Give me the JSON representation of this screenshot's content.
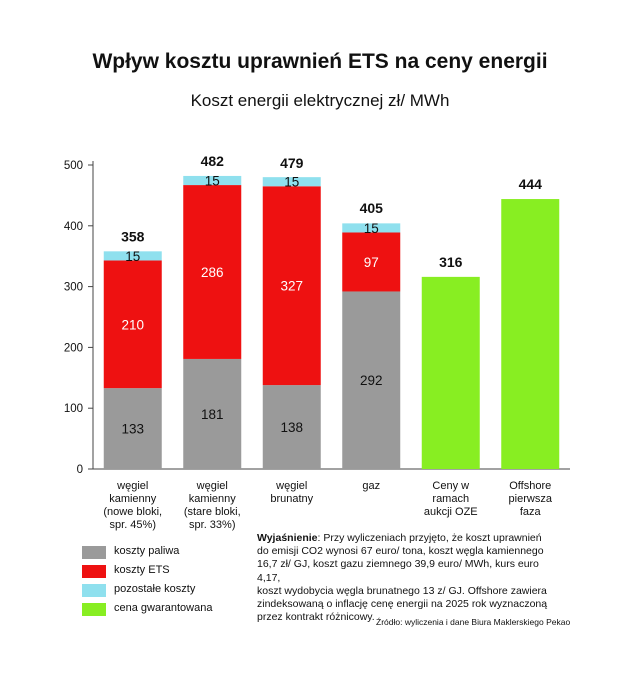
{
  "title": "Wpływ kosztu uprawnień ETS na ceny energii",
  "subtitle": "Koszt energii elektrycznej zł/ MWh",
  "colors": {
    "fuel": "#9a9a9a",
    "ets": "#ee1111",
    "other": "#8fe0ee",
    "guaranteed": "#88ee22"
  },
  "chart_data": {
    "type": "bar",
    "stacked": true,
    "categories": [
      [
        "węgiel",
        "kamienny",
        "(nowe bloki,",
        "spr. 45%)"
      ],
      [
        "węgiel",
        "kamienny",
        "(stare bloki,",
        "spr. 33%)"
      ],
      [
        "węgiel",
        "brunatny"
      ],
      [
        "gaz"
      ],
      [
        "Ceny w",
        "ramach",
        "aukcji OZE"
      ],
      [
        "Offshore",
        "pierwsza",
        "faza"
      ]
    ],
    "series": [
      {
        "name": "koszty paliwa",
        "color": "#9a9a9a",
        "values": [
          133,
          181,
          138,
          292,
          null,
          null
        ]
      },
      {
        "name": "koszty ETS",
        "color": "#ee1111",
        "values": [
          210,
          286,
          327,
          97,
          null,
          null
        ]
      },
      {
        "name": "pozostałe koszty",
        "color": "#8fe0ee",
        "values": [
          15,
          15,
          15,
          15,
          null,
          null
        ]
      },
      {
        "name": "cena gwarantowana",
        "color": "#88ee22",
        "values": [
          null,
          null,
          null,
          null,
          316,
          444
        ]
      }
    ],
    "totals": [
      358,
      482,
      479,
      405,
      316,
      444
    ],
    "ylim": [
      0,
      500
    ],
    "yticks": [
      0,
      100,
      200,
      300,
      400,
      500
    ],
    "grid": false,
    "legend_position": "bottom-left"
  },
  "note": {
    "label": "Wyjaśnienie",
    "lines": [
      ": Przy wyliczeniach przyjęto, że koszt uprawnień",
      "do emisji CO2 wynosi 67 euro/ tona, koszt węgla kamiennego",
      "16,7 zł/ GJ, koszt gazu ziemnego 39,9 euro/ MWh, kurs euro 4,17,",
      "koszt wydobycia węgla brunatnego 13 z/ GJ. Offshore zawiera",
      "zindeksowaną o inflację cenę energii na 2025 rok wyznaczoną",
      "przez kontrakt różnicowy."
    ]
  },
  "source": "Źródło: wyliczenia i dane Biura Maklerskiego Pekao"
}
